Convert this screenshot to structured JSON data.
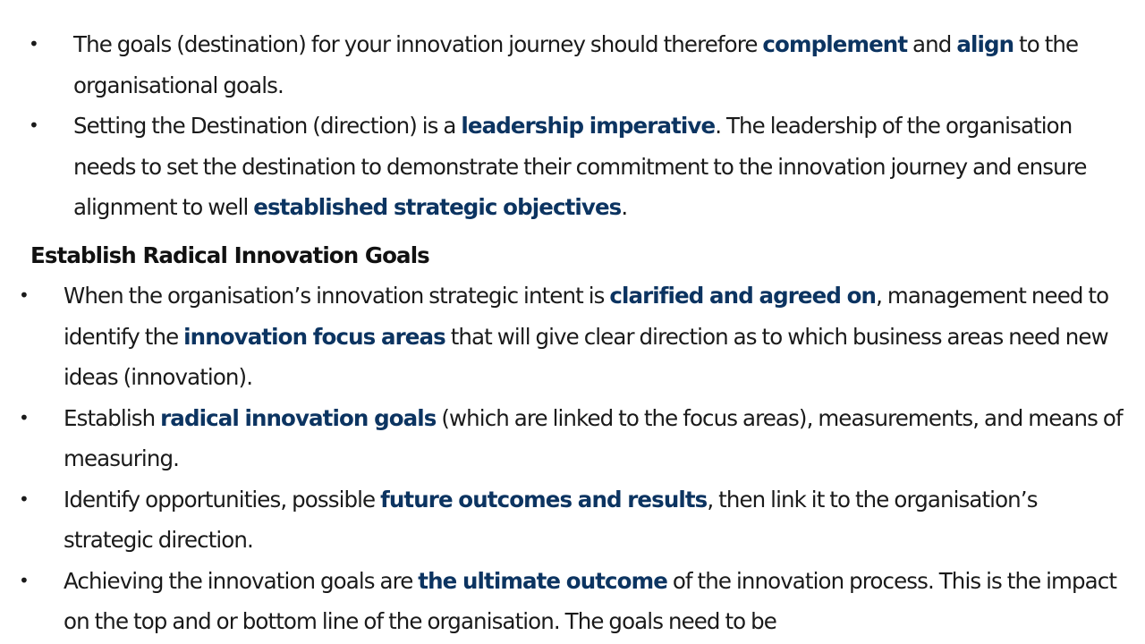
{
  "bullet_glyph": "•",
  "section1": {
    "bullets": [
      [
        {
          "t": "The goals (destination) for your innovation journey should therefore "
        },
        {
          "t": "complement",
          "em": true
        },
        {
          "t": " and "
        },
        {
          "t": "align",
          "em": true
        },
        {
          "t": " to the organisational goals."
        }
      ],
      [
        {
          "t": "Setting the Destination (direction) is a "
        },
        {
          "t": "leadership imperative",
          "em": true
        },
        {
          "t": ". The leadership of the organisation needs to set the destination to demonstrate their commitment to the innovation journey and ensure alignment to well "
        },
        {
          "t": "established strategic objectives",
          "em": true
        },
        {
          "t": "."
        }
      ]
    ]
  },
  "section2": {
    "heading": "Establish Radical Innovation Goals",
    "bullets": [
      [
        {
          "t": "When the organisation’s innovation strategic intent is "
        },
        {
          "t": "clarified and agreed on",
          "em": true
        },
        {
          "t": ", management need to identify the "
        },
        {
          "t": "innovation focus areas",
          "em": true
        },
        {
          "t": " that will give clear direction as to which business areas need new ideas (innovation)."
        }
      ],
      [
        {
          "t": "Establish "
        },
        {
          "t": "radical innovation goals",
          "em": true
        },
        {
          "t": " (which are linked to the focus areas), measurements, and means of measuring."
        }
      ],
      [
        {
          "t": "Identify opportunities, possible "
        },
        {
          "t": "future outcomes and results",
          "em": true
        },
        {
          "t": ", then link it to the organisation’s strategic direction."
        }
      ],
      [
        {
          "t": "Achieving the innovation goals are "
        },
        {
          "t": "the ultimate outcome",
          "em": true
        },
        {
          "t": " of the innovation process. This is the impact on the top and or bottom line of the organisation. The goals need to be"
        }
      ]
    ]
  },
  "colors": {
    "emphasis": "#0c3461",
    "text": "#1a1a1a"
  }
}
